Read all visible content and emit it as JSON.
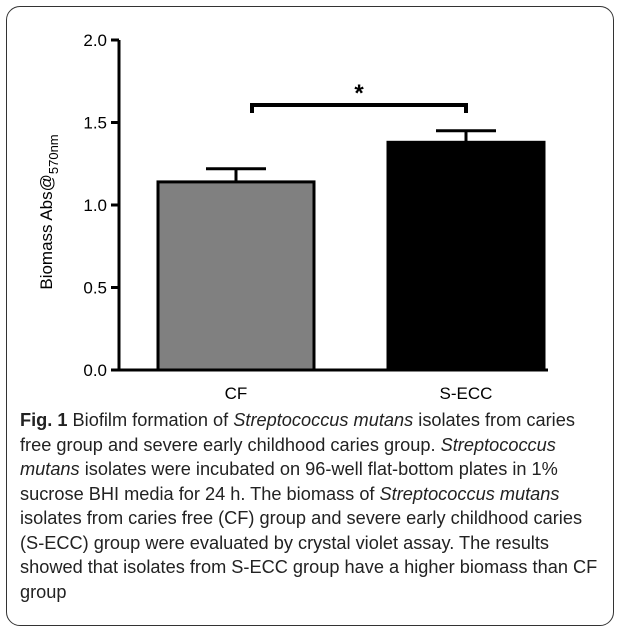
{
  "chart_data": {
    "type": "bar",
    "categories": [
      "CF",
      "S-ECC"
    ],
    "values": [
      1.14,
      1.38
    ],
    "errors": [
      0.08,
      0.07
    ],
    "ylabel_main": "Biomass Abs@",
    "ylabel_sub": "570nm",
    "ylim": [
      0.0,
      2.0
    ],
    "yticks": [
      "0.0",
      "0.5",
      "1.0",
      "1.5",
      "2.0"
    ],
    "significance": {
      "label": "*",
      "between": [
        0,
        1
      ]
    },
    "bar_colors": [
      "#808080",
      "#000000"
    ],
    "grid": false
  },
  "caption": {
    "fig_label": "Fig. 1",
    "parts": [
      " Biofilm formation of ",
      "Streptococcus mutans",
      " isolates from caries free group and severe early childhood caries group. ",
      "Streptococcus mutans",
      " isolates were incubated on 96-well flat-bottom plates in 1% sucrose BHI media for 24 h. The biomass of ",
      "Streptococcus mutans",
      " isolates from caries free (CF) group and severe early childhood caries (S-ECC) group were evaluated by crystal violet assay. The results showed that isolates from S-ECC group have a higher biomass than CF group"
    ]
  }
}
